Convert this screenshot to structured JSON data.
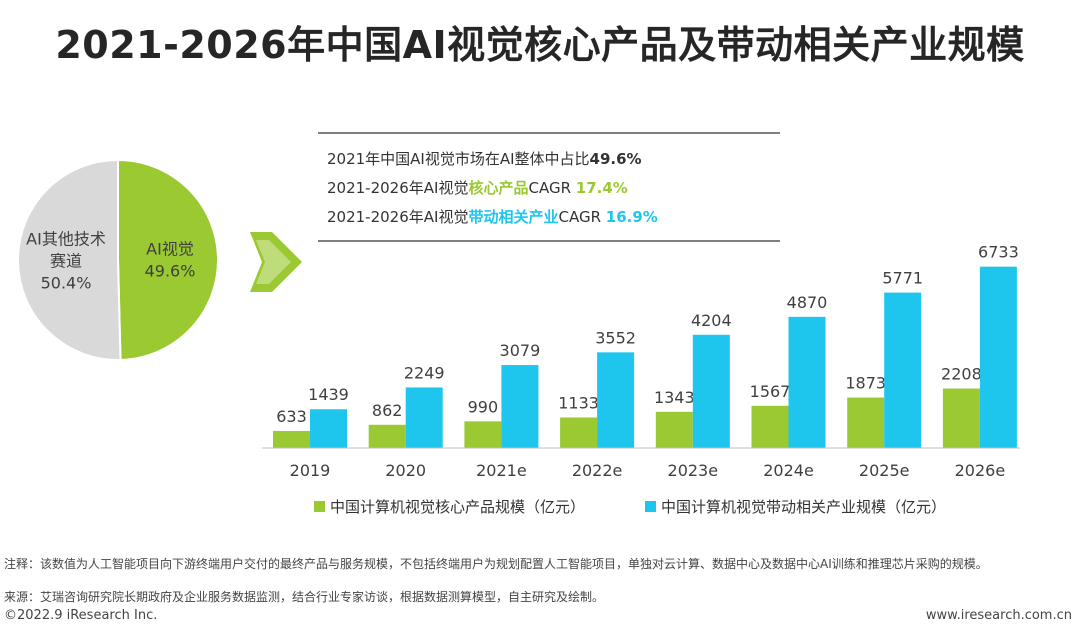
{
  "title": "2021-2026年中国AI视觉核心产品及带动相关产业规模",
  "pie": {
    "slices": [
      {
        "label_line1": "AI视觉",
        "label_line2": "",
        "value_text": "49.6%",
        "value": 49.6,
        "color": "#9bc932"
      },
      {
        "label_line1": "AI其他技术",
        "label_line2": "赛道",
        "value_text": "50.4%",
        "value": 50.4,
        "color": "#d9d9d9"
      }
    ]
  },
  "stats": [
    {
      "parts": [
        {
          "text": "2021年中国AI视觉市场在AI整体中占比",
          "color": "#333333",
          "bold": false
        },
        {
          "text": "49.6%",
          "color": "#333333",
          "bold": true
        }
      ]
    },
    {
      "parts": [
        {
          "text": "2021-2026年AI视觉",
          "color": "#333333",
          "bold": false
        },
        {
          "text": "核心产品",
          "color": "#9bc932",
          "bold": true
        },
        {
          "text": "CAGR ",
          "color": "#333333",
          "bold": false
        },
        {
          "text": "17.4%",
          "color": "#9bc932",
          "bold": true
        }
      ]
    },
    {
      "parts": [
        {
          "text": "2021-2026年AI视觉",
          "color": "#333333",
          "bold": false
        },
        {
          "text": "带动相关产业",
          "color": "#1ec6ee",
          "bold": true
        },
        {
          "text": "CAGR ",
          "color": "#333333",
          "bold": false
        },
        {
          "text": "16.9%",
          "color": "#1ec6ee",
          "bold": true
        }
      ]
    }
  ],
  "chart_data": {
    "type": "bar",
    "categories": [
      "2019",
      "2020",
      "2021e",
      "2022e",
      "2023e",
      "2024e",
      "2025e",
      "2026e"
    ],
    "series": [
      {
        "name": "中国计算机视觉核心产品规模（亿元）",
        "color": "#9bc932",
        "values": [
          633,
          862,
          990,
          1133,
          1343,
          1567,
          1873,
          2208
        ]
      },
      {
        "name": "中国计算机视觉带动相关产业规模（亿元）",
        "color": "#1ec6ee",
        "values": [
          1439,
          2249,
          3079,
          3552,
          4204,
          4870,
          5771,
          6733
        ]
      }
    ],
    "ylim": [
      0,
      8000
    ],
    "grid": false,
    "legend": "bottom"
  },
  "notes": {
    "note": "注释：该数值为人工智能项目向下游终端用户交付的最终产品与服务规模，不包括终端用户为规划配置人工智能项目，单独对云计算、数据中心及数据中心AI训练和推理芯片采购的规模。",
    "source": "来源：艾瑞咨询研究院长期政府及企业服务数据监测，结合行业专家访谈，根据数据测算模型，自主研究及绘制。"
  },
  "footer": {
    "left": "©2022.9 iResearch Inc.",
    "right": "www.iresearch.com.cn"
  }
}
